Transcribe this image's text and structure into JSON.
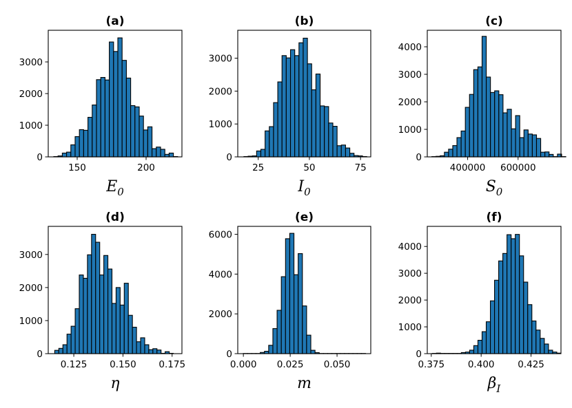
{
  "chart_data": [
    {
      "type": "bar",
      "title": "(a)",
      "xlabel": "E",
      "xlabel_sub": "0",
      "xlim": [
        129,
        226
      ],
      "ylim": [
        0,
        4000
      ],
      "bin_start": 133,
      "bin_width": 3.1,
      "xticks": [
        150,
        200
      ],
      "xtick_labels": [
        "150",
        "200"
      ],
      "yticks": [
        0,
        1000,
        2000,
        3000
      ],
      "ytick_labels": [
        "0",
        "1000",
        "2000",
        "3000"
      ],
      "values": [
        10,
        30,
        120,
        150,
        380,
        640,
        860,
        840,
        1250,
        1640,
        2440,
        2510,
        2430,
        3630,
        3330,
        3760,
        3050,
        2490,
        1620,
        1580,
        1290,
        850,
        950,
        260,
        310,
        240,
        80,
        120,
        10
      ]
    },
    {
      "type": "bar",
      "title": "(b)",
      "xlabel": "I",
      "xlabel_sub": "0",
      "xlim": [
        15,
        80
      ],
      "ylim": [
        0,
        3850
      ],
      "bin_start": 18,
      "bin_width": 2.07,
      "xticks": [
        25,
        50,
        75
      ],
      "xtick_labels": [
        "25",
        "50",
        "75"
      ],
      "yticks": [
        0,
        1000,
        2000,
        3000
      ],
      "ytick_labels": [
        "0",
        "1000",
        "2000",
        "3000"
      ],
      "values": [
        10,
        20,
        30,
        180,
        230,
        790,
        920,
        1650,
        2280,
        3080,
        3010,
        3260,
        3080,
        3470,
        3610,
        2830,
        2040,
        2520,
        1550,
        1530,
        1030,
        930,
        340,
        360,
        270,
        110,
        40,
        30,
        10
      ]
    },
    {
      "type": "bar",
      "title": "(c)",
      "xlabel": "S",
      "xlabel_sub": "0",
      "xlim": [
        240000,
        770000
      ],
      "ylim": [
        0,
        4600
      ],
      "bin_start": 258000,
      "bin_width": 16600,
      "xticks": [
        400000,
        600000
      ],
      "xtick_labels": [
        "400000",
        "600000"
      ],
      "yticks": [
        0,
        1000,
        2000,
        3000,
        4000
      ],
      "ytick_labels": [
        "0",
        "1000",
        "2000",
        "3000",
        "4000"
      ],
      "values": [
        10,
        20,
        40,
        170,
        280,
        410,
        700,
        940,
        1800,
        2270,
        3170,
        3270,
        4380,
        2900,
        2340,
        2400,
        2260,
        1600,
        1730,
        1020,
        1500,
        700,
        980,
        830,
        800,
        670,
        170,
        180,
        90,
        10,
        100,
        10
      ]
    },
    {
      "type": "bar",
      "title": "(d)",
      "xlabel": "η",
      "xlabel_sub": "",
      "xlim": [
        0.112,
        0.18
      ],
      "ylim": [
        0,
        3850
      ],
      "bin_start": 0.1153,
      "bin_width": 0.00208,
      "xticks": [
        0.125,
        0.15,
        0.175
      ],
      "xtick_labels": [
        "0.125",
        "0.150",
        "0.175"
      ],
      "values": [
        100,
        160,
        270,
        590,
        830,
        1360,
        2380,
        2280,
        2990,
        3610,
        3370,
        2380,
        2970,
        2560,
        1520,
        2000,
        1470,
        2130,
        1160,
        800,
        360,
        480,
        270,
        120,
        150,
        110,
        10,
        60,
        10
      ],
      "yticks": [
        0,
        1000,
        2000,
        3000
      ],
      "ytick_labels": [
        "0",
        "1000",
        "2000",
        "3000"
      ]
    },
    {
      "type": "bar",
      "title": "(e)",
      "xlabel": "m",
      "xlabel_sub": "",
      "xlim": [
        -0.003,
        0.068
      ],
      "ylim": [
        0,
        6400
      ],
      "bin_start": 0.0,
      "bin_width": 0.00225,
      "xticks": [
        0.0,
        0.025,
        0.05
      ],
      "xtick_labels": [
        "0.000",
        "0.025",
        "0.050"
      ],
      "yticks": [
        0,
        2000,
        4000,
        6000
      ],
      "ytick_labels": [
        "0",
        "2000",
        "4000",
        "6000"
      ],
      "values": [
        10,
        10,
        10,
        10,
        60,
        120,
        420,
        1260,
        2180,
        3870,
        5780,
        6050,
        3970,
        5030,
        2400,
        930,
        170,
        50,
        10,
        10,
        10,
        10,
        10,
        10,
        10,
        10,
        10,
        10,
        10
      ]
    },
    {
      "type": "bar",
      "title": "(f)",
      "xlabel": "β",
      "xlabel_sub": "I",
      "xlim": [
        0.373,
        0.44
      ],
      "ylim": [
        0,
        4750
      ],
      "bin_start": 0.3755,
      "bin_width": 0.00208,
      "xticks": [
        0.375,
        0.4,
        0.425
      ],
      "xtick_labels": [
        "0.375",
        "0.400",
        "0.425"
      ],
      "yticks": [
        0,
        1000,
        2000,
        3000,
        4000
      ],
      "ytick_labels": [
        "0",
        "1000",
        "2000",
        "3000",
        "4000"
      ],
      "values": [
        10,
        20,
        10,
        10,
        10,
        10,
        10,
        40,
        60,
        130,
        300,
        500,
        820,
        1190,
        1970,
        2740,
        3460,
        3740,
        4440,
        4290,
        4450,
        3650,
        2670,
        1830,
        1220,
        880,
        570,
        360,
        130,
        60,
        20
      ]
    }
  ]
}
